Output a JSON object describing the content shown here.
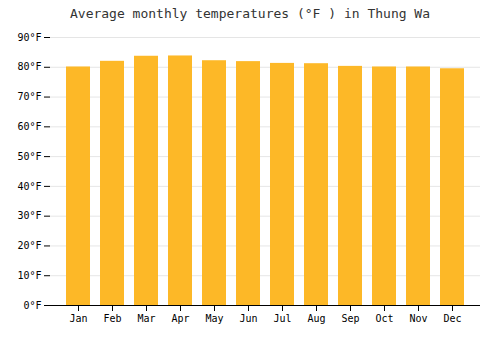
{
  "chart_data": {
    "type": "bar",
    "title": "Average monthly temperatures (°F ) in Thung Wa",
    "categories": [
      "Jan",
      "Feb",
      "Mar",
      "Apr",
      "May",
      "Jun",
      "Jul",
      "Aug",
      "Sep",
      "Oct",
      "Nov",
      "Dec"
    ],
    "values": [
      80.1,
      82.0,
      83.7,
      83.8,
      82.2,
      81.9,
      81.3,
      81.2,
      80.3,
      80.1,
      80.1,
      79.5
    ],
    "color": "#FDB827",
    "ylim": [
      0,
      90
    ],
    "yticks": [
      {
        "value": 0,
        "label": "0°F"
      },
      {
        "value": 10,
        "label": "10°F"
      },
      {
        "value": 20,
        "label": "20°F"
      },
      {
        "value": 30,
        "label": "30°F"
      },
      {
        "value": 40,
        "label": "40°F"
      },
      {
        "value": 50,
        "label": "50°F"
      },
      {
        "value": 60,
        "label": "60°F"
      },
      {
        "value": 70,
        "label": "70°F"
      },
      {
        "value": 80,
        "label": "80°F"
      },
      {
        "value": 90,
        "label": "90°F"
      }
    ],
    "grid": true
  }
}
